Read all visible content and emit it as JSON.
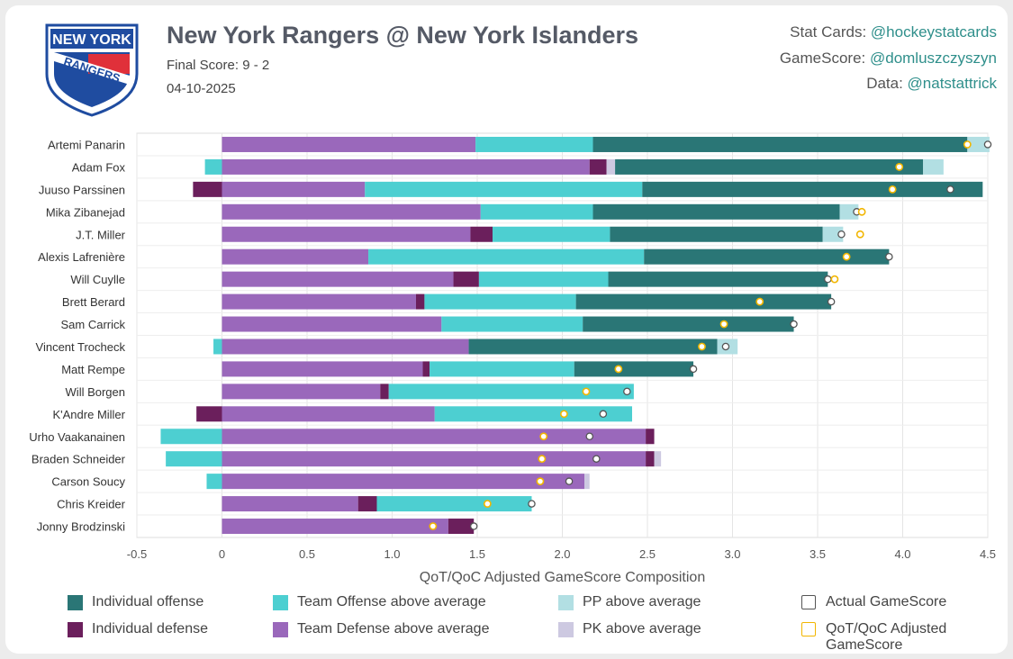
{
  "header": {
    "title": "New York Rangers @ New York Islanders",
    "final_score": "Final Score: 9 - 2",
    "date": "04-10-2025",
    "logo_text_top": "NEW YORK",
    "logo_text_bottom": "RANGERS"
  },
  "credits": [
    {
      "label": "Stat Cards: ",
      "handle": "@hockeystatcards"
    },
    {
      "label": "GameScore: ",
      "handle": "@domluszczyszyn"
    },
    {
      "label": "Data: ",
      "handle": "@natstattrick"
    }
  ],
  "colors": {
    "ind_off": "#2a7676",
    "ind_def": "#6b1f5c",
    "team_off": "#4dcfd1",
    "team_def": "#9a68bb",
    "pp": "#b2dfe3",
    "pk": "#cdc9e1",
    "actual": "#555555",
    "adjusted": "#f2b600"
  },
  "chart_data": {
    "type": "bar",
    "orientation": "horizontal",
    "stacked": true,
    "xlabel": "QoT/QoC Adjusted GameScore Composition",
    "xlim": [
      -0.5,
      4.5
    ],
    "xticks": [
      "-0.5",
      "0",
      "0.5",
      "1.0",
      "1.5",
      "2.0",
      "2.5",
      "3.0",
      "3.5",
      "4.0",
      "4.5"
    ],
    "tick_values": [
      -0.5,
      0,
      0.5,
      1.0,
      1.5,
      2.0,
      2.5,
      3.0,
      3.5,
      4.0,
      4.5
    ],
    "series_names": [
      "Individual offense",
      "Individual defense",
      "Team Offense above average",
      "Team Defense above average",
      "PP above average",
      "PK above average"
    ],
    "players": [
      {
        "name": "Artemi Panarin",
        "team_def": 1.49,
        "ind_def": 0,
        "pk": 0,
        "team_off": 0.69,
        "ind_off": 2.2,
        "pp": 0.13,
        "actual": 4.5,
        "adjusted": 4.38
      },
      {
        "name": "Adam Fox",
        "team_def": 2.16,
        "ind_def": 0.1,
        "pk": 0.05,
        "team_off": -0.1,
        "ind_off": 1.81,
        "pp": 0.12,
        "actual": 3.98,
        "adjusted": 3.98
      },
      {
        "name": "Juuso Parssinen",
        "team_def": 0.84,
        "ind_def": -0.17,
        "pk": 0,
        "team_off": 1.63,
        "ind_off": 2.0,
        "pp": 0,
        "actual": 4.28,
        "adjusted": 3.94
      },
      {
        "name": "Mika Zibanejad",
        "team_def": 1.52,
        "ind_def": 0,
        "pk": 0,
        "team_off": 0.66,
        "ind_off": 1.45,
        "pp": 0.11,
        "actual": 3.73,
        "adjusted": 3.76
      },
      {
        "name": "J.T. Miller",
        "team_def": 1.46,
        "ind_def": 0.13,
        "pk": 0,
        "team_off": 0.69,
        "ind_off": 1.25,
        "pp": 0.12,
        "actual": 3.64,
        "adjusted": 3.75
      },
      {
        "name": "Alexis Lafrenière",
        "team_def": 0.86,
        "ind_def": 0,
        "pk": 0,
        "team_off": 1.62,
        "ind_off": 1.44,
        "pp": 0,
        "actual": 3.92,
        "adjusted": 3.67
      },
      {
        "name": "Will Cuylle",
        "team_def": 1.36,
        "ind_def": 0.15,
        "pk": 0,
        "team_off": 0.76,
        "ind_off": 1.29,
        "pp": 0,
        "actual": 3.56,
        "adjusted": 3.6
      },
      {
        "name": "Brett Berard",
        "team_def": 1.14,
        "ind_def": 0.05,
        "pk": 0,
        "team_off": 0.89,
        "ind_off": 1.5,
        "pp": 0,
        "actual": 3.58,
        "adjusted": 3.16
      },
      {
        "name": "Sam Carrick",
        "team_def": 1.29,
        "ind_def": 0,
        "pk": 0,
        "team_off": 0.83,
        "ind_off": 1.24,
        "pp": 0,
        "actual": 3.36,
        "adjusted": 2.95
      },
      {
        "name": "Vincent Trocheck",
        "team_def": 1.45,
        "ind_def": 0,
        "pk": 0,
        "team_off": -0.05,
        "ind_off": 1.46,
        "pp": 0.12,
        "actual": 2.96,
        "adjusted": 2.82
      },
      {
        "name": "Matt Rempe",
        "team_def": 1.18,
        "ind_def": 0.04,
        "pk": 0,
        "team_off": 0.85,
        "ind_off": 0.7,
        "pp": 0,
        "actual": 2.77,
        "adjusted": 2.33
      },
      {
        "name": "Will Borgen",
        "team_def": 0.93,
        "ind_def": 0.05,
        "pk": 0,
        "team_off": 1.44,
        "ind_off": 0,
        "pp": 0,
        "actual": 2.38,
        "adjusted": 2.14
      },
      {
        "name": "K'Andre Miller",
        "team_def": 1.25,
        "ind_def": -0.15,
        "pk": 0,
        "team_off": 1.16,
        "ind_off": 0,
        "pp": 0,
        "actual": 2.24,
        "adjusted": 2.01
      },
      {
        "name": "Urho Vaakanainen",
        "team_def": 2.49,
        "ind_def": 0.05,
        "pk": 0,
        "team_off": -0.36,
        "ind_off": 0,
        "pp": 0,
        "actual": 2.16,
        "adjusted": 1.89
      },
      {
        "name": "Braden Schneider",
        "team_def": 2.49,
        "ind_def": 0.05,
        "pk": 0.04,
        "team_off": -0.33,
        "ind_off": 0,
        "pp": 0,
        "actual": 2.2,
        "adjusted": 1.88
      },
      {
        "name": "Carson Soucy",
        "team_def": 2.13,
        "ind_def": 0,
        "pk": 0.03,
        "team_off": -0.09,
        "ind_off": 0,
        "pp": 0,
        "actual": 2.04,
        "adjusted": 1.87
      },
      {
        "name": "Chris Kreider",
        "team_def": 0.8,
        "ind_def": 0.11,
        "pk": 0,
        "team_off": 0.91,
        "ind_off": 0,
        "pp": 0,
        "actual": 1.82,
        "adjusted": 1.56
      },
      {
        "name": "Jonny Brodzinski",
        "team_def": 1.33,
        "ind_def": 0.15,
        "pk": 0,
        "team_off": 0,
        "ind_off": 0,
        "pp": 0,
        "actual": 1.48,
        "adjusted": 1.24
      }
    ]
  },
  "legend": [
    {
      "label": "Individual offense",
      "key": "ind_off"
    },
    {
      "label": "Team Offense above average",
      "key": "team_off"
    },
    {
      "label": "PP above average",
      "key": "pp"
    },
    {
      "label": "Actual GameScore",
      "key": "actual"
    },
    {
      "label": "Individual defense",
      "key": "ind_def"
    },
    {
      "label": "Team Defense above average",
      "key": "team_def"
    },
    {
      "label": "PK above average",
      "key": "pk"
    },
    {
      "label": "QoT/QoC Adjusted GameScore",
      "key": "adjusted"
    }
  ]
}
